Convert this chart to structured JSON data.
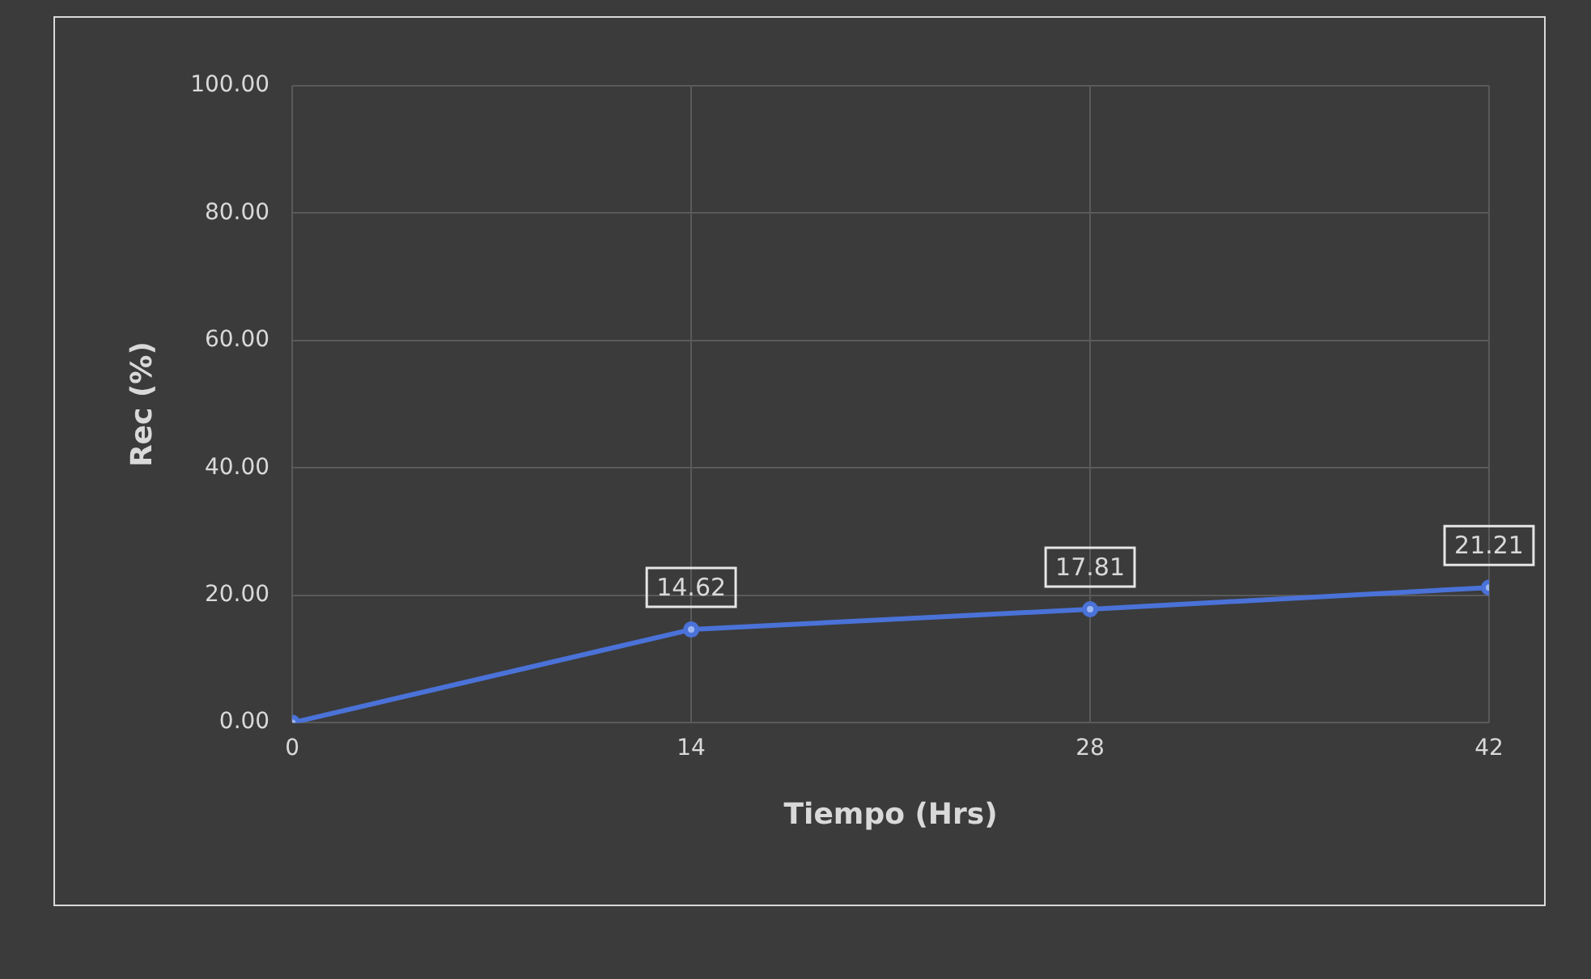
{
  "chart_data": {
    "type": "line",
    "xlabel": "Tiempo (Hrs)",
    "ylabel": "Rec (%)",
    "x": [
      0,
      14,
      28,
      42
    ],
    "series": [
      {
        "color": "#4a72d8",
        "values": [
          0,
          14.62,
          17.81,
          21.21
        ],
        "value_labels": [
          null,
          "14.62",
          "17.81",
          "21.21"
        ]
      }
    ],
    "xlim": [
      0,
      42
    ],
    "xticks": [
      0,
      14,
      28,
      42
    ],
    "ylim": [
      0,
      100
    ],
    "yticks": [
      {
        "value": 0,
        "label": "0.00"
      },
      {
        "value": 20,
        "label": "20.00"
      },
      {
        "value": 40,
        "label": "40.00"
      },
      {
        "value": 60,
        "label": "60.00"
      },
      {
        "value": 80,
        "label": "80.00"
      },
      {
        "value": 100,
        "label": "100.00"
      }
    ],
    "grid": true,
    "marker": "circle",
    "line_style": "solid"
  }
}
